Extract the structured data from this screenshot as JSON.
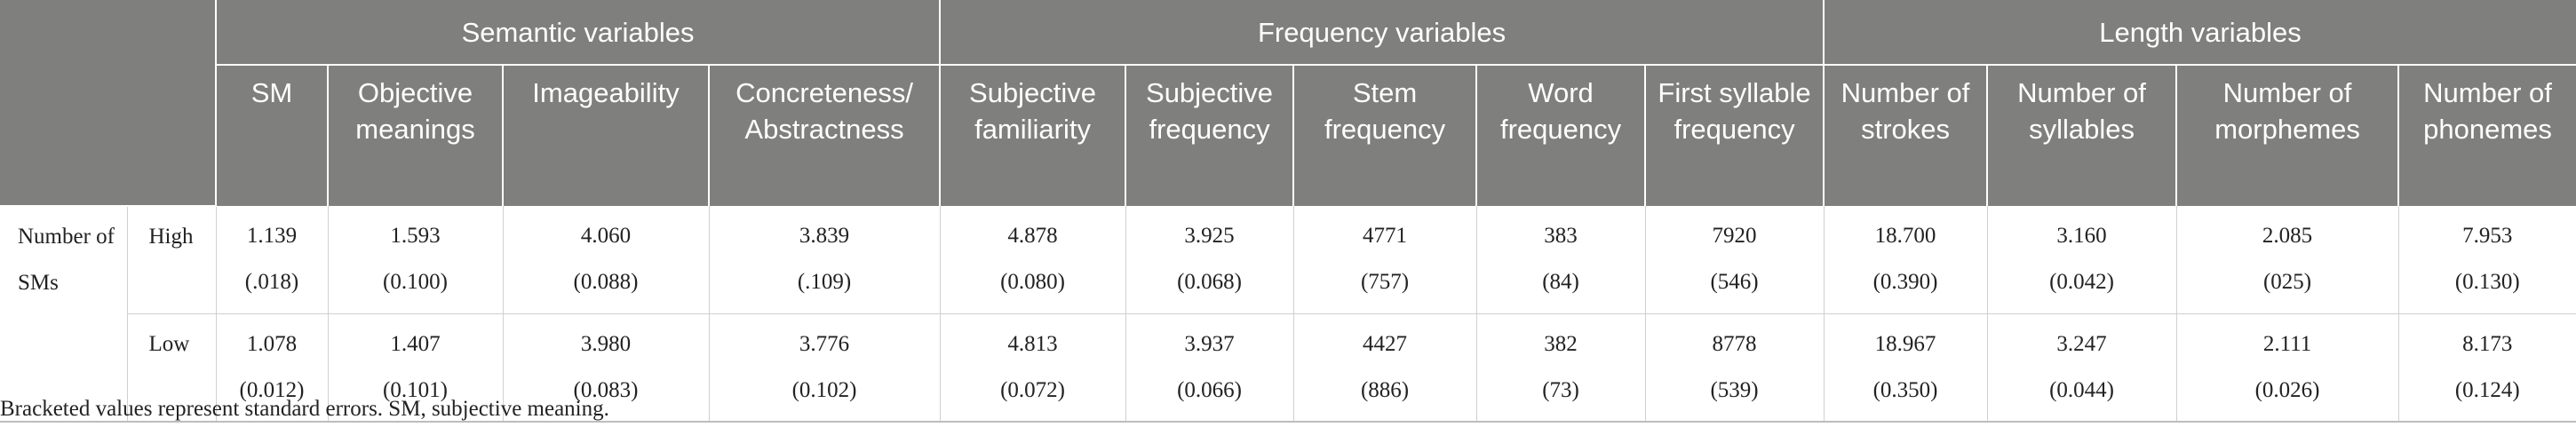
{
  "groups": {
    "semantic": "Semantic variables",
    "frequency": "Frequency variables",
    "length": "Length variables"
  },
  "columns": [
    "SM",
    "Objective meanings",
    "Imageability",
    "Concreteness/ Abstractness",
    "Subjective familiarity",
    "Subjective frequency",
    "Stem frequency",
    "Word frequency",
    "First syllable frequency",
    "Number of strokes",
    "Number of syllables",
    "Number of morphemes",
    "Number of phonemes"
  ],
  "row_group_label": "Number of SMs",
  "rows": [
    {
      "level": "High",
      "means": [
        "1.139",
        "1.593",
        "4.060",
        "3.839",
        "4.878",
        "3.925",
        "4771",
        "383",
        "7920",
        "18.700",
        "3.160",
        "2.085",
        "7.953"
      ],
      "errors": [
        "(.018)",
        "(0.100)",
        "(0.088)",
        "(.109)",
        "(0.080)",
        "(0.068)",
        "(757)",
        "(84)",
        "(546)",
        "(0.390)",
        "(0.042)",
        "(025)",
        "(0.130)"
      ]
    },
    {
      "level": "Low",
      "means": [
        "1.078",
        "1.407",
        "3.980",
        "3.776",
        "4.813",
        "3.937",
        "4427",
        "382",
        "8778",
        "18.967",
        "3.247",
        "2.111",
        "8.173"
      ],
      "errors": [
        "(0.012)",
        "(0.101)",
        "(0.083)",
        "(0.102)",
        "(0.072)",
        "(0.066)",
        "(886)",
        "(73)",
        "(539)",
        "(0.350)",
        "(0.044)",
        "(0.026)",
        "(0.124)"
      ]
    }
  ],
  "footnote": "Bracketed values represent standard errors. SM, subjective meaning."
}
